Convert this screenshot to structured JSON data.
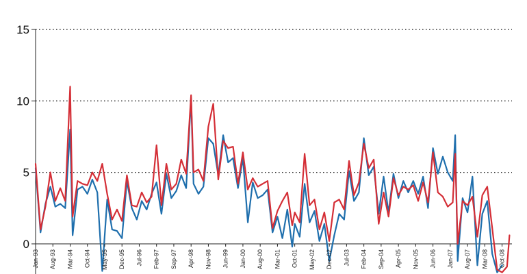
{
  "chart_data": {
    "type": "line",
    "title": "",
    "xlabel": "",
    "ylabel": "",
    "ylim": [
      -2,
      15
    ],
    "yticks": [
      0,
      5,
      10,
      15
    ],
    "grid": "horizontal dotted at 5, 10, 15",
    "legend": "none",
    "x_range": [
      "Jan-93",
      "Feb-09"
    ],
    "xtick_labels": [
      "Jan-93",
      "Aug-93",
      "Mar-94",
      "Oct-94",
      "May-95",
      "Dec-95",
      "Jul-96",
      "Feb-97",
      "Sep-97",
      "Apr-98",
      "Nov-98",
      "Jun-99",
      "Jan-00",
      "Aug-00",
      "Mar-01",
      "Oct-01",
      "May-02",
      "Dec-02",
      "Jul-03",
      "Feb-04",
      "Sep-04",
      "Apr-05",
      "Nov-05",
      "Jun-06",
      "Jan-07",
      "Aug-07",
      "Mar-08",
      "Oct-08"
    ],
    "series": [
      {
        "color": "#1f6fad",
        "points": [
          [
            "Jan-93",
            5.3
          ],
          [
            "Mar-93",
            0.8
          ],
          [
            "May-93",
            2.8
          ],
          [
            "Jul-93",
            4.0
          ],
          [
            "Sep-93",
            2.6
          ],
          [
            "Nov-93",
            2.8
          ],
          [
            "Jan-94",
            2.5
          ],
          [
            "Mar-94",
            8.0
          ],
          [
            "Apr-94",
            0.6
          ],
          [
            "Jun-94",
            3.8
          ],
          [
            "Aug-94",
            4.0
          ],
          [
            "Oct-94",
            3.5
          ],
          [
            "Dec-94",
            4.5
          ],
          [
            "Feb-95",
            3.6
          ],
          [
            "Apr-95",
            -1.9
          ],
          [
            "Jun-95",
            3.1
          ],
          [
            "Aug-95",
            1.0
          ],
          [
            "Oct-95",
            0.9
          ],
          [
            "Dec-95",
            0.4
          ],
          [
            "Feb-96",
            4.4
          ],
          [
            "Apr-96",
            2.5
          ],
          [
            "Jun-96",
            1.7
          ],
          [
            "Aug-96",
            3.0
          ],
          [
            "Oct-96",
            2.4
          ],
          [
            "Dec-96",
            3.5
          ],
          [
            "Feb-97",
            4.3
          ],
          [
            "Apr-97",
            2.1
          ],
          [
            "Jun-97",
            4.9
          ],
          [
            "Aug-97",
            3.2
          ],
          [
            "Oct-97",
            3.7
          ],
          [
            "Dec-97",
            4.8
          ],
          [
            "Feb-98",
            3.9
          ],
          [
            "Apr-98",
            10.2
          ],
          [
            "May-98",
            4.2
          ],
          [
            "Jul-98",
            3.5
          ],
          [
            "Sep-98",
            4.0
          ],
          [
            "Nov-98",
            7.4
          ],
          [
            "Jan-99",
            7.0
          ],
          [
            "Mar-99",
            4.8
          ],
          [
            "May-99",
            7.6
          ],
          [
            "Jul-99",
            5.7
          ],
          [
            "Sep-99",
            6.0
          ],
          [
            "Nov-99",
            3.9
          ],
          [
            "Jan-00",
            6.0
          ],
          [
            "Mar-00",
            1.5
          ],
          [
            "May-00",
            4.3
          ],
          [
            "Jul-00",
            3.2
          ],
          [
            "Sep-00",
            3.4
          ],
          [
            "Nov-00",
            3.8
          ],
          [
            "Jan-01",
            0.8
          ],
          [
            "Mar-01",
            1.9
          ],
          [
            "May-01",
            0.4
          ],
          [
            "Jul-01",
            2.4
          ],
          [
            "Sep-01",
            -0.2
          ],
          [
            "Oct-01",
            1.4
          ],
          [
            "Dec-01",
            0.5
          ],
          [
            "Feb-02",
            4.2
          ],
          [
            "Apr-02",
            1.5
          ],
          [
            "Jun-02",
            2.3
          ],
          [
            "Aug-02",
            0.2
          ],
          [
            "Oct-02",
            1.4
          ],
          [
            "Dec-02",
            -1.2
          ],
          [
            "Feb-03",
            0.6
          ],
          [
            "Apr-03",
            2.1
          ],
          [
            "Jun-03",
            1.7
          ],
          [
            "Aug-03",
            5.1
          ],
          [
            "Oct-03",
            3.0
          ],
          [
            "Dec-03",
            3.6
          ],
          [
            "Feb-04",
            7.4
          ],
          [
            "Apr-04",
            4.8
          ],
          [
            "Jun-04",
            5.4
          ],
          [
            "Aug-04",
            2.1
          ],
          [
            "Oct-04",
            4.7
          ],
          [
            "Dec-04",
            2.2
          ],
          [
            "Feb-05",
            4.9
          ],
          [
            "Apr-05",
            3.2
          ],
          [
            "Jun-05",
            4.4
          ],
          [
            "Aug-05",
            3.6
          ],
          [
            "Oct-05",
            4.4
          ],
          [
            "Dec-05",
            3.5
          ],
          [
            "Feb-06",
            4.7
          ],
          [
            "Apr-06",
            2.5
          ],
          [
            "Jun-06",
            6.7
          ],
          [
            "Aug-06",
            4.9
          ],
          [
            "Oct-06",
            6.1
          ],
          [
            "Dec-06",
            5.0
          ],
          [
            "Feb-07",
            4.4
          ],
          [
            "Mar-07",
            7.6
          ],
          [
            "Apr-07",
            -1.2
          ],
          [
            "Jun-07",
            3.2
          ],
          [
            "Aug-07",
            2.2
          ],
          [
            "Oct-07",
            4.7
          ],
          [
            "Dec-07",
            -1.5
          ],
          [
            "Feb-08",
            2.1
          ],
          [
            "Apr-08",
            3.0
          ],
          [
            "Jun-08",
            -0.7
          ],
          [
            "Aug-08",
            -2.0
          ],
          [
            "Oct-08",
            -1.5
          ]
        ]
      },
      {
        "color": "#d42e36",
        "points": [
          [
            "Jan-93",
            5.6
          ],
          [
            "Mar-93",
            1.0
          ],
          [
            "May-93",
            2.6
          ],
          [
            "Jul-93",
            5.0
          ],
          [
            "Sep-93",
            3.0
          ],
          [
            "Nov-93",
            3.9
          ],
          [
            "Jan-94",
            3.0
          ],
          [
            "Mar-94",
            11.0
          ],
          [
            "Apr-94",
            1.9
          ],
          [
            "Jun-94",
            4.4
          ],
          [
            "Aug-94",
            4.2
          ],
          [
            "Oct-94",
            4.1
          ],
          [
            "Dec-94",
            5.0
          ],
          [
            "Feb-95",
            4.4
          ],
          [
            "Apr-95",
            5.6
          ],
          [
            "Jun-95",
            3.5
          ],
          [
            "Aug-95",
            1.7
          ],
          [
            "Oct-95",
            2.4
          ],
          [
            "Dec-95",
            1.6
          ],
          [
            "Feb-96",
            4.8
          ],
          [
            "Apr-96",
            2.7
          ],
          [
            "Jun-96",
            2.6
          ],
          [
            "Aug-96",
            3.6
          ],
          [
            "Oct-96",
            2.9
          ],
          [
            "Dec-96",
            3.3
          ],
          [
            "Feb-97",
            6.9
          ],
          [
            "Apr-97",
            2.7
          ],
          [
            "Jun-97",
            5.6
          ],
          [
            "Aug-97",
            3.8
          ],
          [
            "Oct-97",
            4.2
          ],
          [
            "Dec-97",
            5.9
          ],
          [
            "Feb-98",
            4.9
          ],
          [
            "Apr-98",
            10.4
          ],
          [
            "May-98",
            5.0
          ],
          [
            "Jul-98",
            5.2
          ],
          [
            "Sep-98",
            4.4
          ],
          [
            "Nov-98",
            8.2
          ],
          [
            "Jan-99",
            9.8
          ],
          [
            "Mar-99",
            4.5
          ],
          [
            "May-99",
            7.2
          ],
          [
            "Jul-99",
            6.7
          ],
          [
            "Sep-99",
            6.8
          ],
          [
            "Nov-99",
            4.2
          ],
          [
            "Jan-00",
            6.4
          ],
          [
            "Mar-00",
            3.8
          ],
          [
            "May-00",
            4.6
          ],
          [
            "Jul-00",
            4.0
          ],
          [
            "Sep-00",
            4.2
          ],
          [
            "Nov-00",
            4.4
          ],
          [
            "Jan-01",
            1.1
          ],
          [
            "Mar-01",
            2.3
          ],
          [
            "May-01",
            3.0
          ],
          [
            "Jul-01",
            3.6
          ],
          [
            "Sep-01",
            1.3
          ],
          [
            "Oct-01",
            2.2
          ],
          [
            "Dec-01",
            1.5
          ],
          [
            "Feb-02",
            6.3
          ],
          [
            "Apr-02",
            2.7
          ],
          [
            "Jun-02",
            3.1
          ],
          [
            "Aug-02",
            1.0
          ],
          [
            "Oct-02",
            2.2
          ],
          [
            "Dec-02",
            0.2
          ],
          [
            "Feb-03",
            2.9
          ],
          [
            "Apr-03",
            3.1
          ],
          [
            "Jun-03",
            2.4
          ],
          [
            "Aug-03",
            5.8
          ],
          [
            "Oct-03",
            3.4
          ],
          [
            "Dec-03",
            4.3
          ],
          [
            "Feb-04",
            7.0
          ],
          [
            "Apr-04",
            5.3
          ],
          [
            "Jun-04",
            5.9
          ],
          [
            "Aug-04",
            1.4
          ],
          [
            "Oct-04",
            3.6
          ],
          [
            "Dec-04",
            1.9
          ],
          [
            "Feb-05",
            4.6
          ],
          [
            "Apr-05",
            3.4
          ],
          [
            "Jun-05",
            4.0
          ],
          [
            "Aug-05",
            3.8
          ],
          [
            "Oct-05",
            4.1
          ],
          [
            "Dec-05",
            3.0
          ],
          [
            "Feb-06",
            4.3
          ],
          [
            "Apr-06",
            2.9
          ],
          [
            "Jun-06",
            6.4
          ],
          [
            "Aug-06",
            3.6
          ],
          [
            "Oct-06",
            3.3
          ],
          [
            "Dec-06",
            2.6
          ],
          [
            "Feb-07",
            2.9
          ],
          [
            "Mar-07",
            6.3
          ],
          [
            "Apr-07",
            0.0
          ],
          [
            "Jun-07",
            3.0
          ],
          [
            "Aug-07",
            2.7
          ],
          [
            "Oct-07",
            3.3
          ],
          [
            "Dec-07",
            0.5
          ],
          [
            "Feb-08",
            3.4
          ],
          [
            "Apr-08",
            4.0
          ],
          [
            "Jun-08",
            1.1
          ],
          [
            "Aug-08",
            -1.8
          ],
          [
            "Oct-08",
            -2.0
          ],
          [
            "Dec-08",
            -1.6
          ],
          [
            "Jan-09",
            0.6
          ]
        ]
      }
    ]
  }
}
